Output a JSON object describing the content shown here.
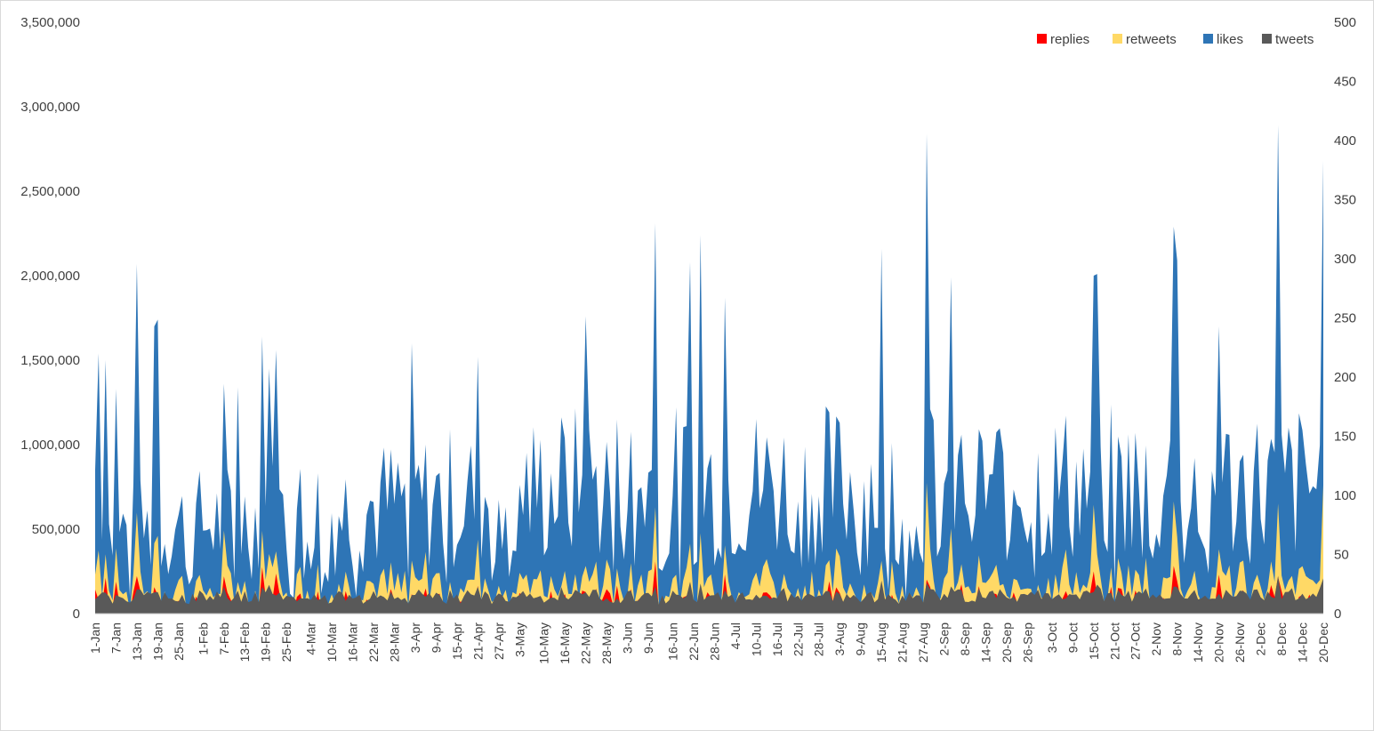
{
  "chart_data": {
    "type": "area",
    "stacked": true,
    "x_categories_shown": [
      "1-Jan",
      "7-Jan",
      "13-Jan",
      "19-Jan",
      "25-Jan",
      "1-Feb",
      "7-Feb",
      "13-Feb",
      "19-Feb",
      "25-Feb",
      "4-Mar",
      "10-Mar",
      "16-Mar",
      "22-Mar",
      "28-Mar",
      "3-Apr",
      "9-Apr",
      "15-Apr",
      "21-Apr",
      "27-Apr",
      "3-May",
      "10-May",
      "16-May",
      "22-May",
      "28-May",
      "3-Jun",
      "9-Jun",
      "16-Jun",
      "22-Jun",
      "28-Jun",
      "4-Jul",
      "10-Jul",
      "16-Jul",
      "22-Jul",
      "28-Jul",
      "3-Aug",
      "9-Aug",
      "15-Aug",
      "21-Aug",
      "27-Aug",
      "2-Sep",
      "8-Sep",
      "14-Sep",
      "20-Sep",
      "26-Sep",
      "3-Oct",
      "9-Oct",
      "15-Oct",
      "21-Oct",
      "27-Oct",
      "2-Nov",
      "8-Nov",
      "14-Nov",
      "20-Nov",
      "26-Nov",
      "2-Dec",
      "8-Dec",
      "14-Dec",
      "20-Dec"
    ],
    "y_left": {
      "min": 0,
      "max": 3500000,
      "ticks": [
        "0",
        "500,000",
        "1,000,000",
        "1,500,000",
        "2,000,000",
        "2,500,000",
        "3,000,000",
        "3,500,000"
      ]
    },
    "y_right": {
      "min": 0,
      "max": 500,
      "ticks": [
        "0",
        "50",
        "100",
        "150",
        "200",
        "250",
        "300",
        "350",
        "400",
        "450",
        "500"
      ]
    },
    "legend": {
      "position": "top-right"
    },
    "series": [
      {
        "name": "replies",
        "color": "#ff0000",
        "axis": "left"
      },
      {
        "name": "retweets",
        "color": "#ffd966",
        "axis": "left"
      },
      {
        "name": "likes",
        "color": "#2e75b6",
        "axis": "left"
      },
      {
        "name": "tweets",
        "color": "#595959",
        "axis": "right"
      }
    ],
    "days": 354,
    "peaks_total_left": [
      {
        "x": "1-Jan",
        "v": 850000
      },
      {
        "x": "2-Jan",
        "v": 1540000
      },
      {
        "x": "4-Jan",
        "v": 1500000
      },
      {
        "x": "7-Jan",
        "v": 1330000
      },
      {
        "x": "13-Jan",
        "v": 2070000
      },
      {
        "x": "18-Jan",
        "v": 1700000
      },
      {
        "x": "19-Jan",
        "v": 1740000
      },
      {
        "x": "7-Feb",
        "v": 1360000
      },
      {
        "x": "11-Feb",
        "v": 1340000
      },
      {
        "x": "18-Feb",
        "v": 1640000
      },
      {
        "x": "20-Feb",
        "v": 1450000
      },
      {
        "x": "22-Feb",
        "v": 1560000
      },
      {
        "x": "2-Apr",
        "v": 1600000
      },
      {
        "x": "21-Apr",
        "v": 1520000
      },
      {
        "x": "22-May",
        "v": 1760000
      },
      {
        "x": "11-Jun",
        "v": 2310000
      },
      {
        "x": "21-Jun",
        "v": 2080000
      },
      {
        "x": "24-Jun",
        "v": 2240000
      },
      {
        "x": "1-Jul",
        "v": 1870000
      },
      {
        "x": "15-Aug",
        "v": 2160000
      },
      {
        "x": "28-Aug",
        "v": 2840000
      },
      {
        "x": "4-Sep",
        "v": 1990000
      },
      {
        "x": "15-Oct",
        "v": 2000000
      },
      {
        "x": "16-Oct",
        "v": 2010000
      },
      {
        "x": "7-Nov",
        "v": 2290000
      },
      {
        "x": "8-Nov",
        "v": 2090000
      },
      {
        "x": "20-Nov",
        "v": 1700000
      },
      {
        "x": "7-Dec",
        "v": 2890000
      },
      {
        "x": "20-Dec",
        "v": 2680000
      }
    ]
  }
}
